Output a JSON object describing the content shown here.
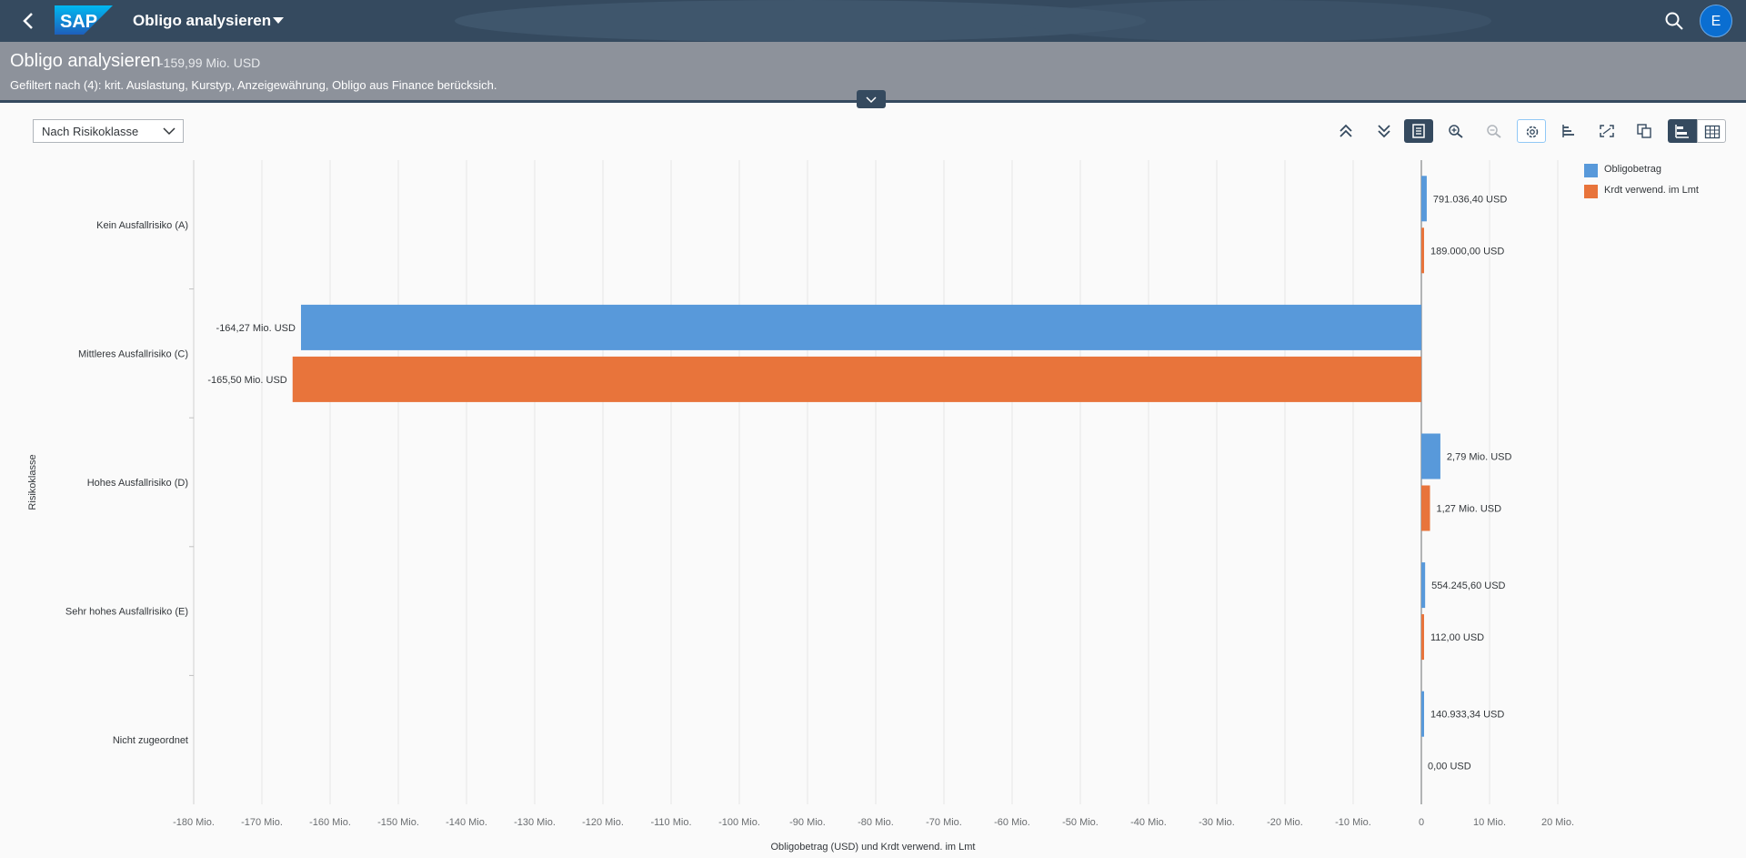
{
  "shell": {
    "logo_text": "SAP",
    "app_title": "Obligo analysieren",
    "avatar_initial": "E",
    "icons": [
      "back-icon",
      "search-icon"
    ]
  },
  "header": {
    "title": "Obligo analysieren",
    "kpi": "-159,99 Mio. USD",
    "filter_text": "Gefiltert nach (4): krit. Auslastung, Kurstyp, Anzeigewährung, Obligo aus Finance berücksich."
  },
  "toolbar": {
    "view_select": "Nach Risikoklasse",
    "icons": [
      "drill-up-icon",
      "drill-down-icon",
      "details-icon",
      "zoom-in-icon",
      "zoom-out-icon",
      "settings-icon",
      "sort-icon",
      "fullscreen-icon",
      "copy-icon",
      "chart-view-icon",
      "table-view-icon"
    ]
  },
  "colors": {
    "shell": "#354a5f",
    "header": "#8d929b",
    "series1": "#5899da",
    "series2": "#e8743b"
  },
  "chart_data": {
    "type": "bar",
    "orientation": "horizontal",
    "categories": [
      "Kein Ausfallrisiko (A)",
      "Mittleres Ausfallrisiko (C)",
      "Hohes Ausfallrisiko (D)",
      "Sehr hohes Ausfallrisiko (E)",
      "Nicht zugeordnet"
    ],
    "series": [
      {
        "name": "Obligobetrag",
        "color": "#5899da",
        "values": [
          0.7910364,
          -164.27,
          2.79,
          0.5542456,
          0.14093334
        ],
        "labels": [
          "791.036,40 USD",
          "-164,27 Mio. USD",
          "2,79 Mio. USD",
          "554.245,60 USD",
          "140.933,34 USD"
        ]
      },
      {
        "name": "Krdt verwend. im Lmt",
        "color": "#e8743b",
        "values": [
          0.189,
          -165.5,
          1.27,
          0.000112,
          0.0
        ],
        "labels": [
          "189.000,00 USD",
          "-165,50 Mio. USD",
          "1,27 Mio. USD",
          "112,00 USD",
          "0,00 USD"
        ]
      }
    ],
    "xlabel": "Obligobetrag (USD) und Krdt verwend. im Lmt",
    "ylabel": "Risikoklasse",
    "xlim": [
      -180,
      20
    ],
    "xticks": [
      -180,
      -170,
      -160,
      -150,
      -140,
      -130,
      -120,
      -110,
      -100,
      -90,
      -80,
      -70,
      -60,
      -50,
      -40,
      -30,
      -20,
      -10,
      0,
      10,
      20
    ],
    "xtick_labels": [
      "-180 Mio.",
      "-170 Mio.",
      "-160 Mio.",
      "-150 Mio.",
      "-140 Mio.",
      "-130 Mio.",
      "-120 Mio.",
      "-110 Mio.",
      "-100 Mio.",
      "-90 Mio.",
      "-80 Mio.",
      "-70 Mio.",
      "-60 Mio.",
      "-50 Mio.",
      "-40 Mio.",
      "-30 Mio.",
      "-20 Mio.",
      "-10 Mio.",
      "0",
      "10 Mio.",
      "20 Mio."
    ],
    "grid": true,
    "legend": "top-right"
  }
}
